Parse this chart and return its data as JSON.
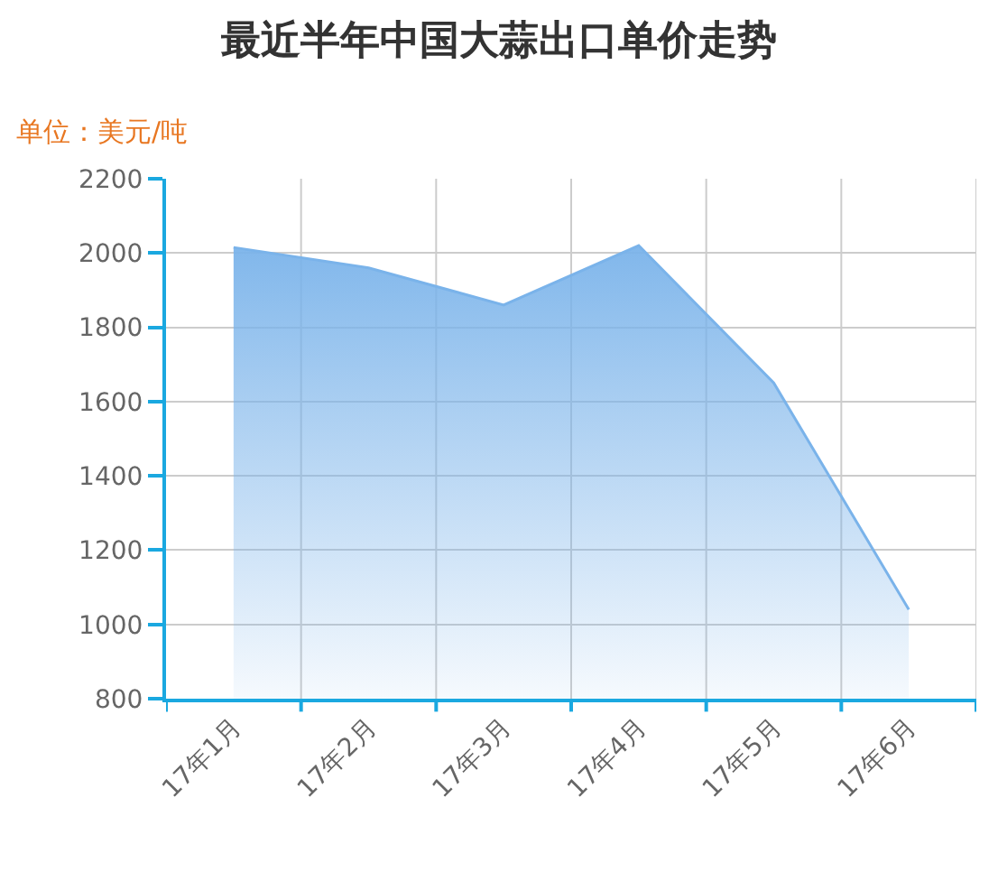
{
  "chart_data": {
    "type": "area",
    "title": "最近半年中国大蒜出口单价走势",
    "subtitle": "单位：美元/吨",
    "categories": [
      "17年1月",
      "17年2月",
      "17年3月",
      "17年4月",
      "17年5月",
      "17年6月"
    ],
    "series": [
      {
        "color": "#7ab3ea",
        "values": [
          2015,
          1960,
          1860,
          2020,
          1650,
          1040
        ]
      }
    ],
    "ylim": [
      800,
      2200
    ],
    "yticks": [
      800,
      1000,
      1200,
      1400,
      1600,
      1800,
      2000,
      2200
    ],
    "grid": true,
    "marker": "none",
    "line_style": "solid"
  }
}
